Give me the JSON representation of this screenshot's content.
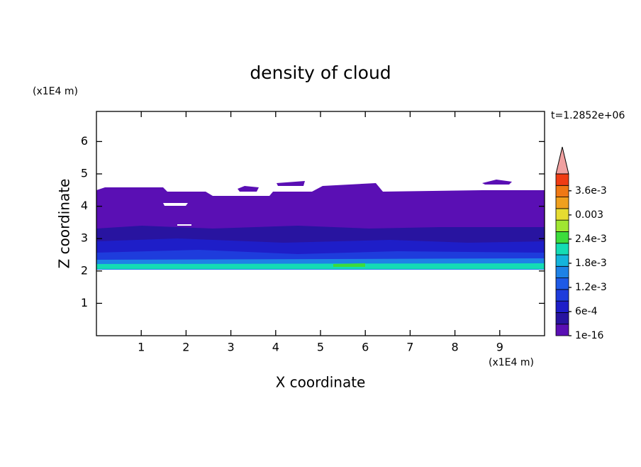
{
  "chart_data": {
    "type": "contour",
    "title": "density of cloud",
    "xlabel": "X coordinate",
    "ylabel": "Z coordinate",
    "xunit": "(x1E4 m)",
    "yunit": "(x1E4 m)",
    "annotation": "t=1.2852e+06",
    "xlim": [
      0,
      10
    ],
    "xticks": [
      1,
      2,
      3,
      4,
      5,
      6,
      7,
      8,
      9
    ],
    "ylim": [
      0,
      6.93
    ],
    "yticks": [
      1,
      2,
      3,
      4,
      5,
      6
    ],
    "colorbar": {
      "clim": [
        1e-16,
        0.00402
      ],
      "ticks": [
        {
          "value": 1e-16,
          "label": "1e-16"
        },
        {
          "value": 0.0006,
          "label": "6e-4"
        },
        {
          "value": 0.0012,
          "label": "1.2e-3"
        },
        {
          "value": 0.0018,
          "label": "1.8e-3"
        },
        {
          "value": 0.0024,
          "label": "2.4e-3"
        },
        0.003,
        {
          "value": 0.0036,
          "label": "3.6e-3"
        }
      ],
      "colors": [
        "#5a0fb4",
        "#2814a0",
        "#1e1ec8",
        "#1e3cdc",
        "#1e5ae6",
        "#1e82e6",
        "#14b4dc",
        "#14dcb4",
        "#3cdc3c",
        "#a0e632",
        "#e6dc32",
        "#f0a01e",
        "#f07814",
        "#f03c14"
      ],
      "extend_color": "#f0a0a0"
    }
  }
}
